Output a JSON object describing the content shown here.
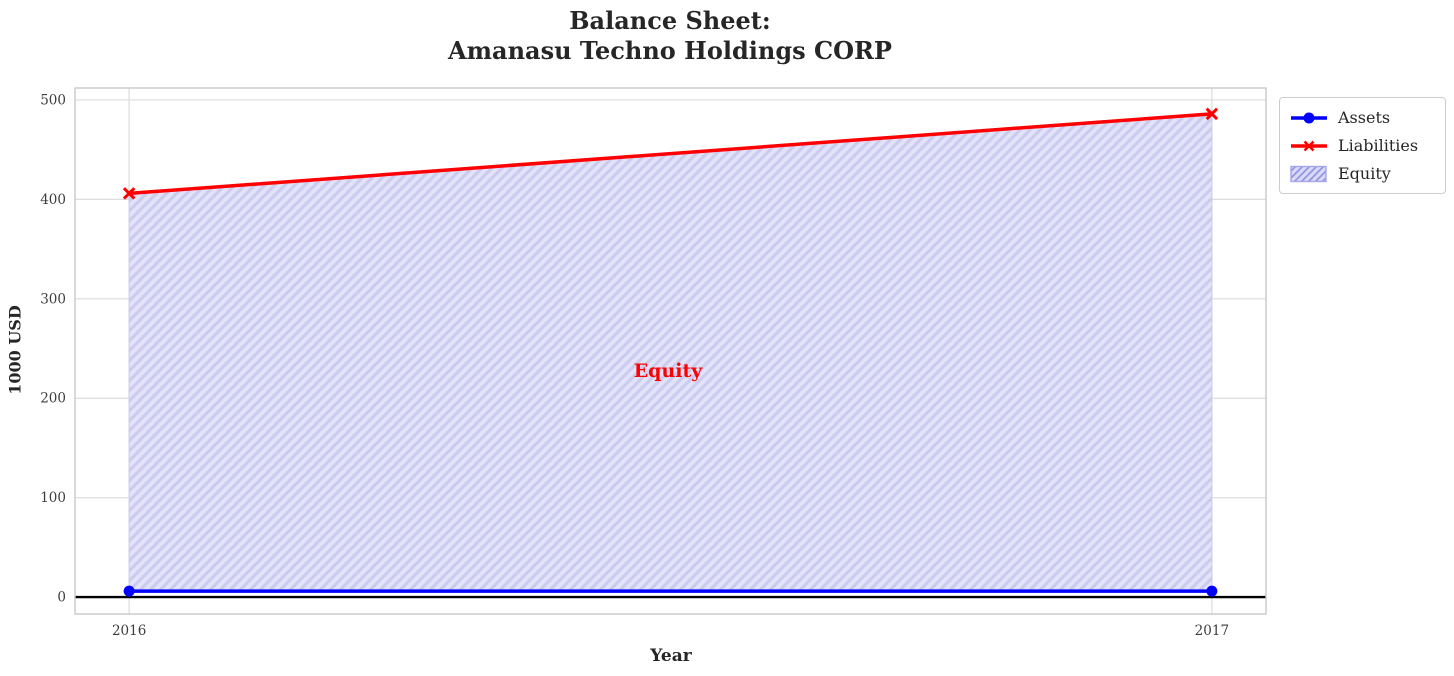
{
  "title": {
    "text": "Balance Sheet:\nAmanasu Techno Holdings CORP"
  },
  "axes": {
    "xlabel": "Year",
    "ylabel": "1000 USD"
  },
  "annotation": {
    "text": "Equity",
    "color": "#ff0000"
  },
  "legend": {
    "items": [
      {
        "label": "Assets"
      },
      {
        "label": "Liabilities"
      },
      {
        "label": "Equity"
      }
    ]
  },
  "colors": {
    "assets": "#0000ff",
    "liabilities": "#ff0000",
    "area_fill": "#e2e2f8",
    "hatch": "#cbcbf0",
    "legend_hatch": "#9595e2",
    "legend_swatch_fill": "#d9d9f6",
    "legend_swatch_border": "#a5a5ea",
    "grid": "#dcdcdc",
    "frame": "#c9c9c9",
    "zero_line": "#000000",
    "text": "#262626"
  },
  "chart_data": {
    "type": "area",
    "title": "Balance Sheet:\nAmanasu Techno Holdings CORP",
    "xlabel": "Year",
    "ylabel": "1000 USD",
    "x": [
      2016,
      2017
    ],
    "series": [
      {
        "name": "Assets",
        "values": [
          6,
          6
        ],
        "color": "#0000ff",
        "marker": "circle"
      },
      {
        "name": "Liabilities",
        "values": [
          406,
          486
        ],
        "color": "#ff0000",
        "marker": "x"
      }
    ],
    "area_between": {
      "name": "Equity",
      "lower_series": "Assets",
      "upper_series": "Liabilities",
      "fill": "#e2e2f8",
      "hatch": "//",
      "hatch_color": "#cbcbf0"
    },
    "xticks": [
      2016,
      2017
    ],
    "yticks": [
      0,
      100,
      200,
      300,
      400,
      500
    ],
    "xlim": [
      2015.95,
      2017.05
    ],
    "ylim": [
      -17,
      512
    ],
    "grid": true,
    "zero_line": true,
    "legend_position": "outside-upper-right",
    "annotation": {
      "text": "Equity",
      "x": 2016.5,
      "y": 225
    }
  }
}
